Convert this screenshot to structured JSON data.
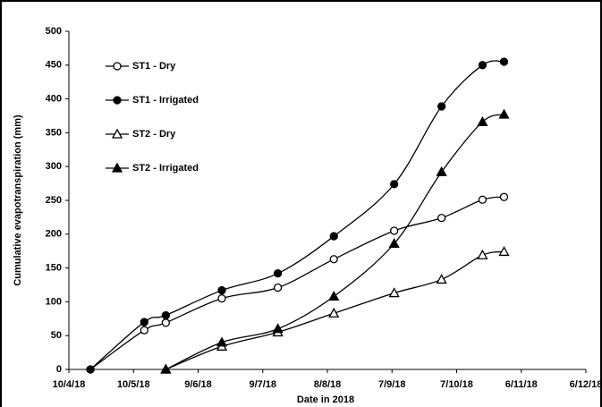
{
  "chart_data": {
    "type": "line",
    "x_label": "Date in 2018",
    "y_label": "Cumulative evapotranspiration (mm)",
    "x": [
      "2018-04-20",
      "2018-05-15",
      "2018-05-25",
      "2018-06-20",
      "2018-07-16",
      "2018-08-11",
      "2018-09-08",
      "2018-09-30",
      "2018-10-19",
      "2018-10-29"
    ],
    "series": [
      {
        "name": "ST1 - Dry",
        "color": "#000000",
        "marker": "circle-open",
        "values": [
          0,
          58,
          69,
          105,
          121,
          163,
          205,
          224,
          251,
          255
        ]
      },
      {
        "name": "ST1 - Irrigated",
        "color": "#000000",
        "marker": "circle-filled",
        "values": [
          0,
          70,
          80,
          117,
          142,
          197,
          274,
          389,
          450,
          455
        ]
      },
      {
        "name": "ST2 - Dry",
        "color": "#000000",
        "marker": "triangle-open",
        "values": [
          null,
          null,
          0,
          34,
          55,
          83,
          113,
          133,
          169,
          174
        ]
      },
      {
        "name": "ST2 - Irrigated",
        "color": "#000000",
        "marker": "triangle-filled",
        "values": [
          null,
          null,
          0,
          40,
          60,
          108,
          186,
          292,
          366,
          377
        ]
      }
    ],
    "xlim": [
      "2018-04-10",
      "2018-12-06"
    ],
    "xticks": [
      {
        "value": "2018-04-10",
        "label": "10/4/18"
      },
      {
        "value": "2018-05-10",
        "label": "10/5/18"
      },
      {
        "value": "2018-06-09",
        "label": "9/6/18"
      },
      {
        "value": "2018-07-09",
        "label": "9/7/18"
      },
      {
        "value": "2018-08-08",
        "label": "8/8/18"
      },
      {
        "value": "2018-09-07",
        "label": "7/9/18"
      },
      {
        "value": "2018-10-07",
        "label": "7/10/18"
      },
      {
        "value": "2018-11-06",
        "label": "6/11/18"
      },
      {
        "value": "2018-12-06",
        "label": "6/12/18"
      }
    ],
    "ylim": [
      0,
      500
    ],
    "yticks": [
      0,
      50,
      100,
      150,
      200,
      250,
      300,
      350,
      400,
      450,
      500
    ],
    "grid": false,
    "legend": "upper-left"
  }
}
